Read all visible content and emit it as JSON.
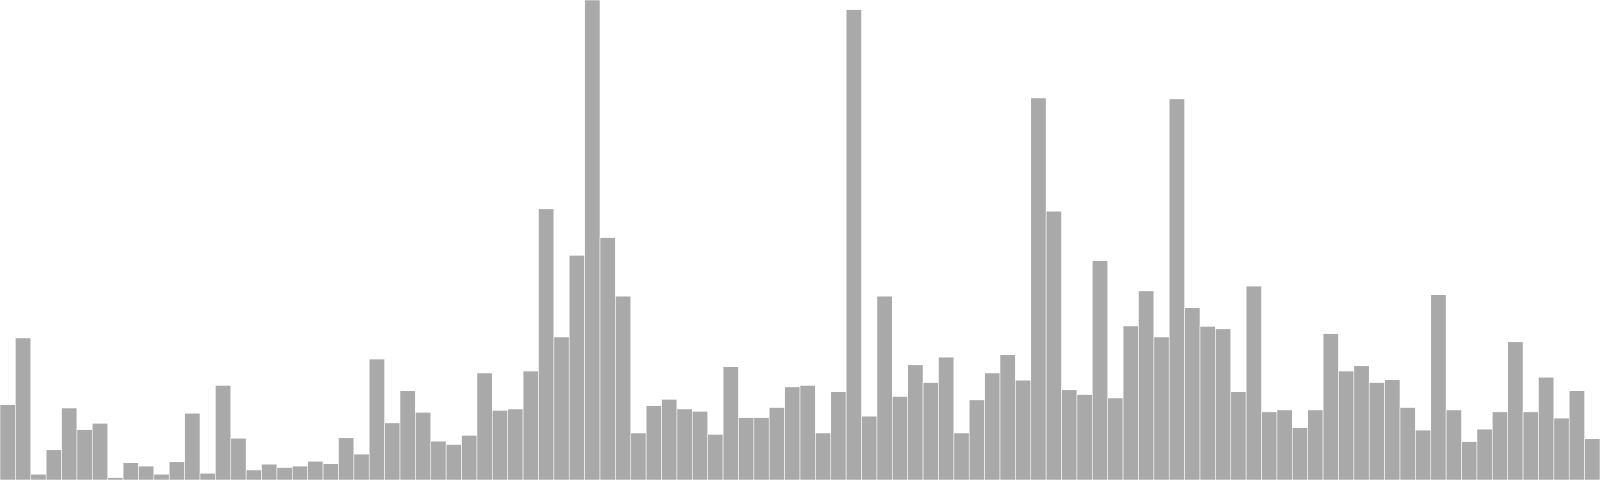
{
  "chart_data": {
    "type": "bar",
    "title": "",
    "xlabel": "",
    "ylabel": "",
    "ylim": [
      0,
      1000
    ],
    "grid": false,
    "legend": "none",
    "bar_color": "#a9a9a9",
    "bar_edge_color": "#ffffff",
    "background_color": "#ffffff",
    "values": [
      157,
      296,
      12,
      63,
      150,
      105,
      118,
      5,
      36,
      29,
      12,
      38,
      139,
      14,
      197,
      87,
      21,
      33,
      26,
      29,
      39,
      34,
      88,
      54,
      252,
      119,
      186,
      141,
      81,
      74,
      93,
      223,
      145,
      148,
      227,
      565,
      298,
      468,
      1000,
      505,
      383,
      98,
      155,
      168,
      148,
      143,
      95,
      236,
      130,
      130,
      151,
      194,
      197,
      98,
      184,
      980,
      133,
      383,
      174,
      240,
      203,
      256,
      98,
      167,
      223,
      261,
      208,
      796,
      560,
      188,
      178,
      457,
      171,
      321,
      394,
      298,
      794,
      359,
      320,
      315,
      184,
      404,
      142,
      146,
      109,
      146,
      305,
      227,
      238,
      203,
      209,
      151,
      104,
      386,
      146,
      80,
      106,
      142,
      288,
      142,
      214,
      129,
      186,
      86
    ]
  }
}
